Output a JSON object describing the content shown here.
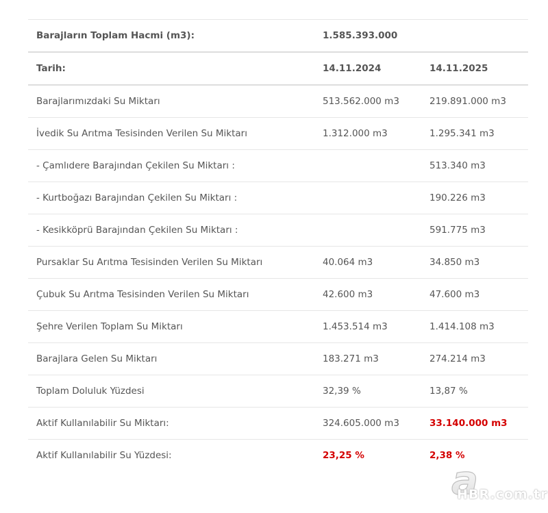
{
  "summary": {
    "label": "Barajların Toplam Hacmi (m3):",
    "value": "1.585.393.000"
  },
  "header": {
    "label": "Tarih:",
    "date_1": "14.11.2024",
    "date_2": "14.11.2025"
  },
  "rows": [
    {
      "label": "Barajlarımızdaki Su Miktarı",
      "v2024": "513.562.000 m3",
      "v2025": "219.891.000 m3"
    },
    {
      "label": "İvedik Su Arıtma Tesisinden Verilen Su Miktarı",
      "v2024": "1.312.000 m3",
      "v2025": "1.295.341 m3"
    },
    {
      "label": "- Çamlıdere Barajından Çekilen Su Miktarı :",
      "v2024": "",
      "v2025": "513.340 m3"
    },
    {
      "label": "- Kurtboğazı Barajından Çekilen Su Miktarı :",
      "v2024": "",
      "v2025": "190.226 m3"
    },
    {
      "label": "- Kesikköprü Barajından Çekilen Su Miktarı :",
      "v2024": "",
      "v2025": "591.775 m3"
    },
    {
      "label": "Pursaklar Su Arıtma Tesisinden Verilen Su Miktarı",
      "v2024": "40.064 m3",
      "v2025": "34.850 m3"
    },
    {
      "label": "Çubuk Su Arıtma Tesisinden Verilen Su Miktarı",
      "v2024": "42.600 m3",
      "v2025": "47.600 m3"
    },
    {
      "label": "Şehre Verilen Toplam Su Miktarı",
      "v2024": "1.453.514 m3",
      "v2025": "1.414.108 m3"
    },
    {
      "label": "Barajlara Gelen Su Miktarı",
      "v2024": "183.271 m3",
      "v2025": "274.214 m3"
    },
    {
      "label": "Toplam Doluluk Yüzdesi",
      "v2024": "32,39 %",
      "v2025": "13,87 %"
    },
    {
      "label": "Aktif Kullanılabilir Su Miktarı:",
      "v2024": "324.605.000 m3",
      "v2025": "33.140.000 m3"
    },
    {
      "label": "Aktif Kullanılabilir Su Yüzdesi:",
      "v2024": "23,25 %",
      "v2025": "2,38 %"
    }
  ],
  "highlight_color": "#d40000",
  "watermark": {
    "logo_letter": "a",
    "text": "HBR.com.tr"
  }
}
